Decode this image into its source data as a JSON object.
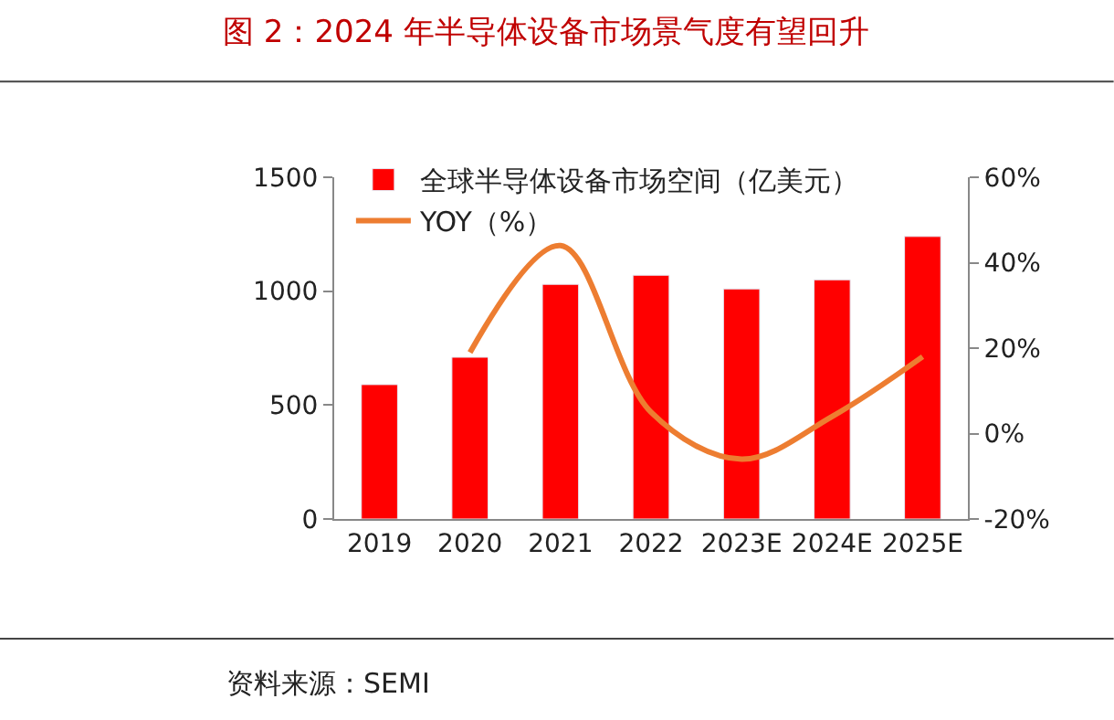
{
  "chart_data": {
    "type": "bar",
    "title": "图 2：2024 年半导体设备市场景气度有望回升",
    "categories": [
      "2019",
      "2020",
      "2021",
      "2022",
      "2023E",
      "2024E",
      "2025E"
    ],
    "series": [
      {
        "name": "全球半导体设备市场空间（亿美元）",
        "color": "#ff0000",
        "values": [
          590,
          710,
          1030,
          1070,
          1010,
          1050,
          1240
        ]
      },
      {
        "name": "YOY（%）",
        "color": "#ed7d31",
        "type": "line",
        "axis": "y2",
        "values": [
          null,
          19,
          44,
          5,
          -6,
          4,
          18
        ]
      }
    ],
    "ylim": [
      0,
      1500
    ],
    "yticks": [
      0,
      500,
      1000,
      1500
    ],
    "y2lim": [
      -20,
      60
    ],
    "y2ticks": [
      {
        "value": -20,
        "label": "-20%"
      },
      {
        "value": 0,
        "label": "0%"
      },
      {
        "value": 20,
        "label": "20%"
      },
      {
        "value": 40,
        "label": "40%"
      },
      {
        "value": 60,
        "label": "60%"
      }
    ],
    "grid": false,
    "legend": "top left",
    "marker": "none",
    "annotations": [
      "资料来源：SEMI"
    ]
  }
}
